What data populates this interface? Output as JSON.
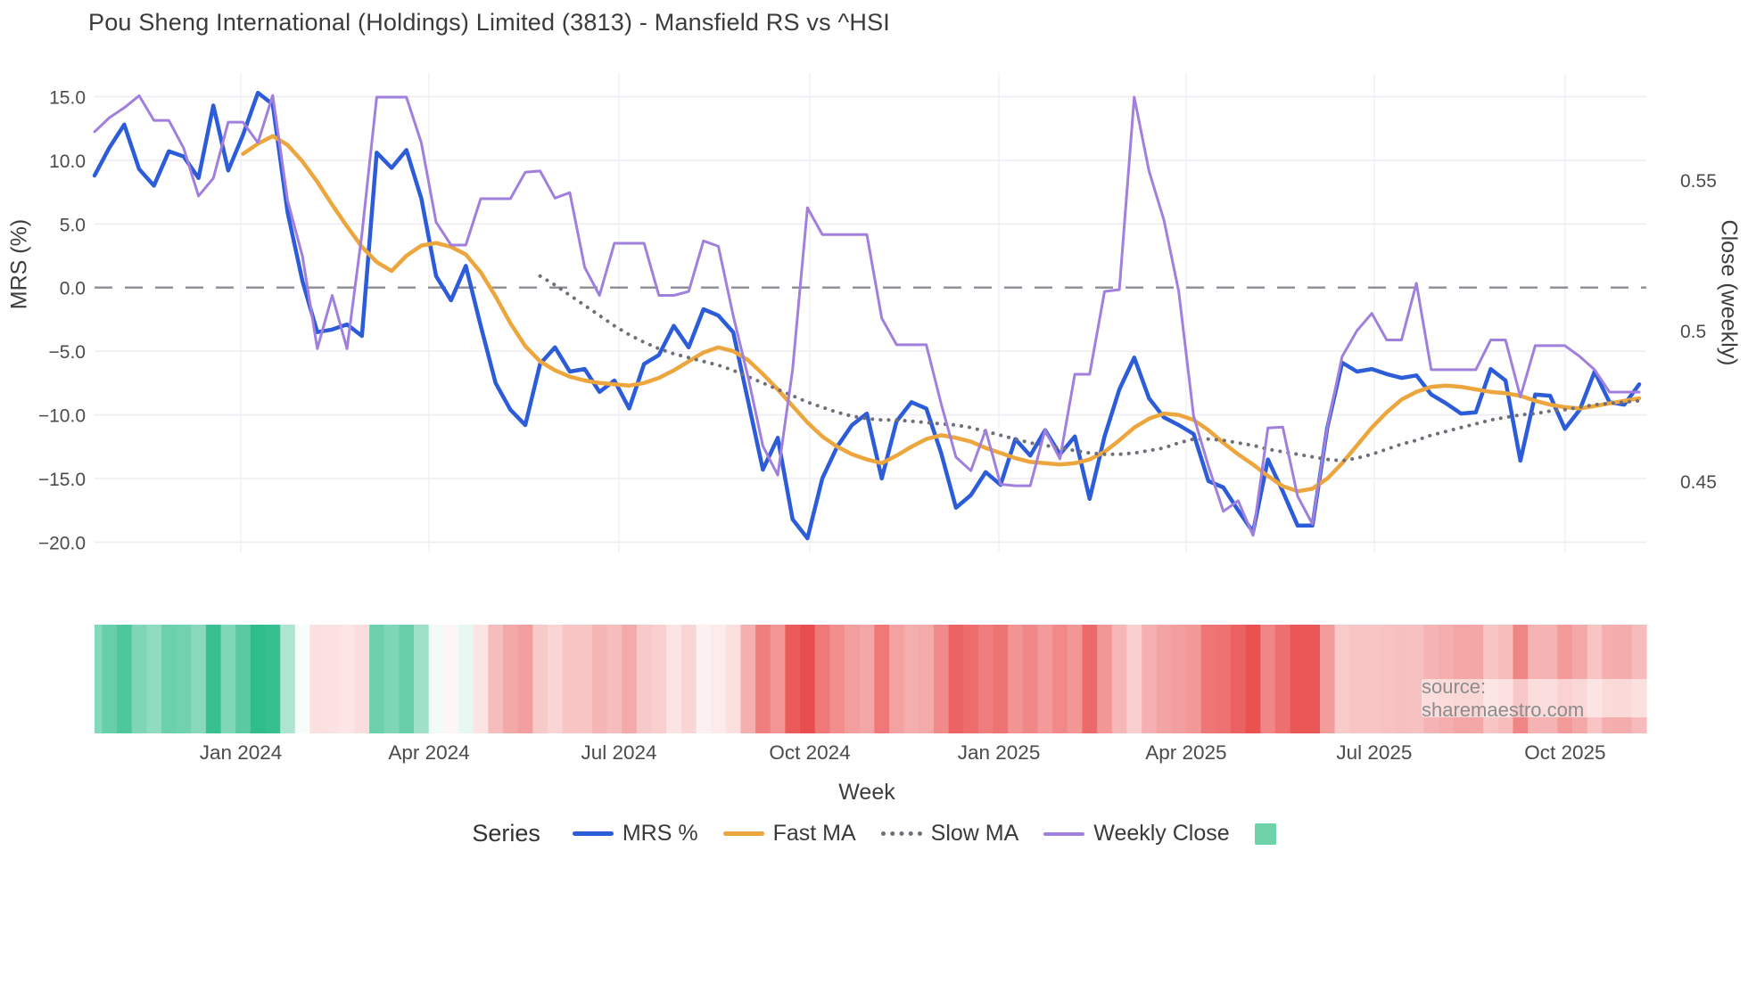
{
  "title": "Pou Sheng International (Holdings) Limited (3813) - Mansfield RS vs ^HSI",
  "axes": {
    "y_left_label": "MRS (%)",
    "y_right_label": "Close (weekly)",
    "x_label": "Week"
  },
  "legend": {
    "heading": "Series",
    "items": [
      {
        "label": "MRS %",
        "color": "#2d5cd9",
        "style": "solid"
      },
      {
        "label": "Fast MA",
        "color": "#eda63d",
        "style": "solid"
      },
      {
        "label": "Slow MA",
        "color": "#6f6f78",
        "style": "dotted"
      },
      {
        "label": "Weekly Close",
        "color": "#a07fdd",
        "style": "solid-thin"
      }
    ],
    "heatmap_swatch_color": "#6fd3a9"
  },
  "source_note": "source: sharemaestro.com",
  "colors": {
    "grid": "#ededf3",
    "vgrid": "#f1f1f6",
    "zero_line": "#8b8b95",
    "tick_text": "#4b4b4b"
  },
  "chart_data": {
    "type": "line",
    "title": "Pou Sheng International (Holdings) Limited (3813) - Mansfield RS vs ^HSI",
    "xlabel": "Week",
    "ylabel_left": "MRS (%)",
    "ylabel_right": "Close (weekly)",
    "n_weeks": 105,
    "x_ticks": [
      {
        "label": "Jan 2024",
        "week": 9.85
      },
      {
        "label": "Apr 2024",
        "week": 22.52
      },
      {
        "label": "Jul 2024",
        "week": 35.31
      },
      {
        "label": "Oct 2024",
        "week": 48.16
      },
      {
        "label": "Jan 2025",
        "week": 60.89
      },
      {
        "label": "Apr 2025",
        "week": 73.49
      },
      {
        "label": "Jul 2025",
        "week": 86.16
      },
      {
        "label": "Oct 2025",
        "week": 99.01
      }
    ],
    "y_left": {
      "ticks": [
        15.0,
        10.0,
        5.0,
        0.0,
        -5.0,
        -10.0,
        -15.0,
        -20.0
      ],
      "zero_dashed": true
    },
    "y_right": {
      "ticks": [
        0.55,
        0.5,
        0.45
      ]
    },
    "series": [
      {
        "name": "MRS %",
        "axis": "left",
        "color": "#2d5cd9",
        "width": 4.5,
        "dash": null,
        "values": [
          8.8,
          11.0,
          12.8,
          9.3,
          8.0,
          10.7,
          10.3,
          8.6,
          14.3,
          9.2,
          12.0,
          15.3,
          14.4,
          5.9,
          0.5,
          -3.5,
          -3.3,
          -2.9,
          -3.8,
          10.6,
          9.4,
          10.8,
          7.0,
          0.9,
          -1.0,
          1.7,
          -3.0,
          -7.5,
          -9.6,
          -10.8,
          -6.0,
          -4.7,
          -6.6,
          -6.4,
          -8.2,
          -7.3,
          -9.5,
          -6.0,
          -5.3,
          -3.0,
          -4.7,
          -1.7,
          -2.2,
          -3.5,
          -8.9,
          -14.3,
          -11.8,
          -18.2,
          -19.7,
          -15.0,
          -12.5,
          -10.8,
          -9.9,
          -15.0,
          -10.5,
          -9.0,
          -9.5,
          -13.0,
          -17.3,
          -16.3,
          -14.5,
          -15.5,
          -11.9,
          -13.2,
          -11.2,
          -13.1,
          -11.7,
          -16.6,
          -11.7,
          -8.0,
          -5.5,
          -8.7,
          -10.2,
          -10.8,
          -11.5,
          -15.2,
          -15.7,
          -17.5,
          -19.2,
          -13.5,
          -16.0,
          -18.7,
          -18.7,
          -11.0,
          -5.9,
          -6.6,
          -6.4,
          -6.8,
          -7.1,
          -6.9,
          -8.4,
          -9.1,
          -9.9,
          -9.8,
          -6.4,
          -7.3,
          -13.6,
          -8.4,
          -8.5,
          -11.1,
          -9.6,
          -6.6,
          -9.0,
          -9.2,
          -7.6
        ]
      },
      {
        "name": "Fast MA",
        "axis": "left",
        "color": "#eda63d",
        "width": 4.5,
        "dash": null,
        "values": [
          null,
          null,
          null,
          null,
          null,
          null,
          null,
          null,
          null,
          null,
          10.5,
          11.3,
          11.9,
          11.2,
          9.9,
          8.3,
          6.5,
          4.8,
          3.2,
          2.0,
          1.3,
          2.5,
          3.3,
          3.5,
          3.2,
          2.6,
          1.2,
          -0.7,
          -2.8,
          -4.6,
          -5.8,
          -6.5,
          -7.0,
          -7.3,
          -7.5,
          -7.6,
          -7.7,
          -7.5,
          -7.1,
          -6.5,
          -5.8,
          -5.1,
          -4.7,
          -5.0,
          -5.7,
          -6.8,
          -8.0,
          -9.3,
          -10.6,
          -11.7,
          -12.5,
          -13.1,
          -13.5,
          -13.8,
          -13.2,
          -12.5,
          -11.9,
          -11.6,
          -11.8,
          -12.1,
          -12.6,
          -13.0,
          -13.4,
          -13.7,
          -13.8,
          -13.9,
          -13.8,
          -13.5,
          -12.9,
          -12.0,
          -11.0,
          -10.3,
          -9.9,
          -10.0,
          -10.4,
          -11.2,
          -12.2,
          -13.1,
          -13.9,
          -14.8,
          -15.6,
          -16.0,
          -15.8,
          -15.0,
          -13.8,
          -12.4,
          -11.0,
          -9.8,
          -8.8,
          -8.2,
          -7.8,
          -7.7,
          -7.8,
          -8.0,
          -8.2,
          -8.3,
          -8.5,
          -8.9,
          -9.2,
          -9.4,
          -9.5,
          -9.3,
          -9.1,
          -8.9,
          -8.7
        ]
      },
      {
        "name": "Slow MA",
        "axis": "left",
        "color": "#6f6f78",
        "width": 4.0,
        "dash": "dotted",
        "values": [
          null,
          null,
          null,
          null,
          null,
          null,
          null,
          null,
          null,
          null,
          null,
          null,
          null,
          null,
          null,
          null,
          null,
          null,
          null,
          null,
          null,
          null,
          null,
          null,
          null,
          null,
          null,
          null,
          null,
          null,
          0.9,
          0.2,
          -0.6,
          -1.4,
          -2.2,
          -3.0,
          -3.7,
          -4.3,
          -4.8,
          -5.2,
          -5.5,
          -5.8,
          -6.1,
          -6.5,
          -7.0,
          -7.5,
          -8.0,
          -8.5,
          -9.0,
          -9.4,
          -9.8,
          -10.1,
          -10.3,
          -10.4,
          -10.4,
          -10.5,
          -10.6,
          -10.7,
          -10.8,
          -11.0,
          -11.3,
          -11.6,
          -11.9,
          -12.2,
          -12.4,
          -12.6,
          -12.8,
          -13.0,
          -13.1,
          -13.1,
          -13.0,
          -12.8,
          -12.6,
          -12.2,
          -11.9,
          -11.9,
          -12.0,
          -12.2,
          -12.4,
          -12.7,
          -12.9,
          -13.1,
          -13.3,
          -13.5,
          -13.6,
          -13.4,
          -13.1,
          -12.7,
          -12.3,
          -12.0,
          -11.6,
          -11.3,
          -11.0,
          -10.7,
          -10.4,
          -10.2,
          -10.0,
          -9.9,
          -9.7,
          -9.6,
          -9.4,
          -9.2,
          -9.1,
          -9.0,
          -8.9
        ]
      },
      {
        "name": "Weekly Close",
        "axis": "right",
        "color": "#a07fdd",
        "width": 3.0,
        "dash": null,
        "values": [
          0.566,
          0.5707,
          0.574,
          0.578,
          0.5698,
          0.5698,
          0.5606,
          0.5447,
          0.5506,
          0.5692,
          0.5692,
          0.5624,
          0.5781,
          0.5432,
          0.5246,
          0.494,
          0.5117,
          0.494,
          0.532,
          0.5775,
          0.5775,
          0.5775,
          0.5624,
          0.536,
          0.5284,
          0.5284,
          0.5438,
          0.5438,
          0.5438,
          0.5526,
          0.553,
          0.544,
          0.5458,
          0.521,
          0.5117,
          0.529,
          0.529,
          0.529,
          0.5117,
          0.5117,
          0.513,
          0.5298,
          0.528,
          0.505,
          0.4846,
          0.4617,
          0.452,
          0.487,
          0.5408,
          0.5319,
          0.5319,
          0.5319,
          0.5319,
          0.5041,
          0.4953,
          0.4953,
          0.4953,
          0.4757,
          0.458,
          0.4535,
          0.467,
          0.449,
          0.4485,
          0.4485,
          0.467,
          0.4574,
          0.4855,
          0.4855,
          0.513,
          0.5136,
          0.5775,
          0.553,
          0.5367,
          0.513,
          0.4716,
          0.455,
          0.44,
          0.4435,
          0.432,
          0.4677,
          0.468,
          0.445,
          0.4358,
          0.468,
          0.4914,
          0.5,
          0.5057,
          0.4969,
          0.4969,
          0.5157,
          0.487,
          0.487,
          0.487,
          0.487,
          0.4969,
          0.4969,
          0.478,
          0.495,
          0.495,
          0.495,
          0.4914,
          0.487,
          0.4796,
          0.4796,
          0.4796
        ]
      }
    ],
    "heatmap": {
      "based_on": "MRS %",
      "positive_color": "#2fbd8a",
      "zero_color": "#ffffff",
      "negative_color": "#e94b4b",
      "domain": [
        -20,
        15
      ]
    }
  }
}
